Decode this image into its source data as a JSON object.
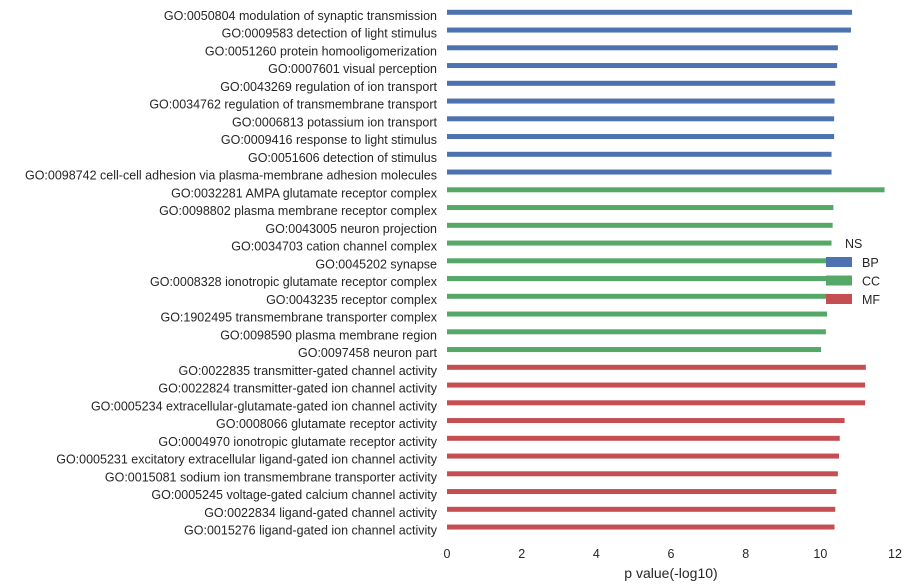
{
  "chart_data": {
    "type": "bar",
    "orientation": "horizontal",
    "xlabel": "p value(-log10)",
    "xlim": [
      0,
      12
    ],
    "xticks": [
      0,
      2,
      4,
      6,
      8,
      10,
      12
    ],
    "grid": false,
    "legend": {
      "title": "NS",
      "placement": "right",
      "entries": [
        {
          "name": "BP",
          "color": "#4c72b0"
        },
        {
          "name": "CC",
          "color": "#55a868"
        },
        {
          "name": "MF",
          "color": "#c44e52"
        }
      ]
    },
    "series": [
      {
        "name": "BP",
        "color": "#4c72b0",
        "categories": [
          "GO:0050804 modulation of synaptic transmission",
          "GO:0009583 detection of light stimulus",
          "GO:0051260 protein homooligomerization",
          "GO:0007601 visual perception",
          "GO:0043269 regulation of ion transport",
          "GO:0034762 regulation of transmembrane transport",
          "GO:0006813 potassium ion transport",
          "GO:0009416 response to light stimulus",
          "GO:0051606 detection of stimulus",
          "GO:0098742 cell-cell adhesion via plasma-membrane adhesion molecules"
        ],
        "values": [
          10.85,
          10.82,
          10.47,
          10.45,
          10.4,
          10.38,
          10.37,
          10.37,
          10.3,
          10.3
        ]
      },
      {
        "name": "CC",
        "color": "#55a868",
        "categories": [
          "GO:0032281 AMPA glutamate receptor complex",
          "GO:0098802 plasma membrane receptor complex",
          "GO:0043005 neuron projection",
          "GO:0034703 cation channel complex",
          "GO:0045202 synapse",
          "GO:0008328 ionotropic glutamate receptor complex",
          "GO:0043235 receptor complex",
          "GO:1902495 transmembrane transporter complex",
          "GO:0098590 plasma membrane region",
          "GO:0097458 neuron part"
        ],
        "values": [
          11.72,
          10.35,
          10.33,
          10.3,
          10.28,
          10.25,
          10.22,
          10.18,
          10.15,
          10.02
        ]
      },
      {
        "name": "MF",
        "color": "#c44e52",
        "categories": [
          "GO:0022835 transmitter-gated channel activity",
          "GO:0022824 transmitter-gated ion channel activity",
          "GO:0005234 extracellular-glutamate-gated ion channel activity",
          "GO:0008066 glutamate receptor activity",
          "GO:0004970 ionotropic glutamate receptor activity",
          "GO:0005231 excitatory extracellular ligand-gated ion channel activity",
          "GO:0015081 sodium ion transmembrane transporter activity",
          "GO:0005245 voltage-gated calcium channel activity",
          "GO:0022834 ligand-gated channel activity",
          "GO:0015276 ligand-gated ion channel activity"
        ],
        "values": [
          11.22,
          11.2,
          11.2,
          10.65,
          10.52,
          10.5,
          10.47,
          10.43,
          10.4,
          10.38
        ]
      }
    ]
  }
}
